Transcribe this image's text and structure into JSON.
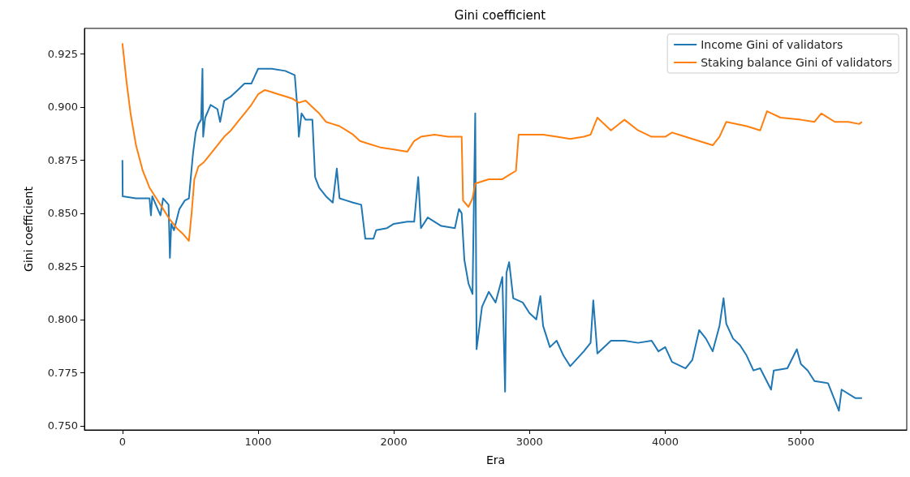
{
  "chart_data": {
    "type": "line",
    "title": "Gini coefficient",
    "xlabel": "Era",
    "ylabel": "Gini coefficient",
    "xlim": [
      -280,
      5780
    ],
    "ylim": [
      0.748,
      0.937
    ],
    "xticks": [
      0,
      1000,
      2000,
      3000,
      4000,
      5000
    ],
    "yticks": [
      {
        "value": 0.75,
        "label": "0.750"
      },
      {
        "value": 0.775,
        "label": "0.775"
      },
      {
        "value": 0.8,
        "label": "0.800"
      },
      {
        "value": 0.825,
        "label": "0.825"
      },
      {
        "value": 0.85,
        "label": "0.850"
      },
      {
        "value": 0.875,
        "label": "0.875"
      },
      {
        "value": 0.9,
        "label": "0.900"
      },
      {
        "value": 0.925,
        "label": "0.925"
      }
    ],
    "grid": false,
    "legend": "top right",
    "marker": "none",
    "line_style": "solid",
    "series": [
      {
        "name": "Income Gini of validators",
        "color": "#1f77b4",
        "x": [
          0,
          2,
          100,
          200,
          210,
          220,
          280,
          300,
          340,
          350,
          360,
          380,
          420,
          460,
          490,
          520,
          540,
          560,
          580,
          590,
          595,
          610,
          650,
          700,
          720,
          750,
          800,
          850,
          900,
          950,
          1000,
          1100,
          1200,
          1270,
          1290,
          1300,
          1320,
          1350,
          1400,
          1420,
          1450,
          1500,
          1550,
          1580,
          1600,
          1650,
          1700,
          1760,
          1790,
          1850,
          1870,
          1950,
          2000,
          2100,
          2150,
          2180,
          2200,
          2250,
          2350,
          2450,
          2480,
          2500,
          2520,
          2550,
          2580,
          2600,
          2610,
          2650,
          2700,
          2750,
          2800,
          2820,
          2830,
          2850,
          2880,
          2950,
          3000,
          3050,
          3080,
          3100,
          3150,
          3200,
          3250,
          3300,
          3400,
          3450,
          3470,
          3500,
          3600,
          3700,
          3800,
          3900,
          3950,
          4000,
          4050,
          4150,
          4200,
          4250,
          4300,
          4350,
          4400,
          4430,
          4450,
          4500,
          4550,
          4600,
          4650,
          4700,
          4780,
          4800,
          4900,
          4970,
          5000,
          5050,
          5100,
          5200,
          5280,
          5300,
          5400,
          5450
        ],
        "values": [
          0.875,
          0.858,
          0.857,
          0.857,
          0.849,
          0.858,
          0.849,
          0.857,
          0.854,
          0.829,
          0.845,
          0.842,
          0.852,
          0.856,
          0.857,
          0.878,
          0.888,
          0.892,
          0.894,
          0.918,
          0.886,
          0.895,
          0.901,
          0.899,
          0.893,
          0.903,
          0.905,
          0.908,
          0.911,
          0.911,
          0.918,
          0.918,
          0.917,
          0.915,
          0.899,
          0.886,
          0.897,
          0.894,
          0.894,
          0.867,
          0.862,
          0.858,
          0.855,
          0.871,
          0.857,
          0.856,
          0.855,
          0.854,
          0.838,
          0.838,
          0.842,
          0.843,
          0.845,
          0.846,
          0.846,
          0.867,
          0.843,
          0.848,
          0.844,
          0.843,
          0.852,
          0.85,
          0.828,
          0.817,
          0.812,
          0.897,
          0.786,
          0.806,
          0.813,
          0.808,
          0.82,
          0.766,
          0.822,
          0.827,
          0.81,
          0.808,
          0.803,
          0.8,
          0.811,
          0.797,
          0.787,
          0.79,
          0.783,
          0.778,
          0.785,
          0.789,
          0.809,
          0.784,
          0.79,
          0.79,
          0.789,
          0.79,
          0.785,
          0.787,
          0.78,
          0.777,
          0.781,
          0.795,
          0.791,
          0.785,
          0.797,
          0.81,
          0.798,
          0.791,
          0.788,
          0.783,
          0.776,
          0.777,
          0.767,
          0.776,
          0.777,
          0.786,
          0.779,
          0.776,
          0.771,
          0.77,
          0.757,
          0.767,
          0.763,
          0.763
        ]
      },
      {
        "name": "Staking balance Gini of validators",
        "color": "#ff7f0e",
        "x": [
          0,
          30,
          60,
          100,
          150,
          200,
          250,
          300,
          350,
          400,
          450,
          490,
          510,
          530,
          560,
          600,
          650,
          700,
          750,
          800,
          850,
          900,
          950,
          1000,
          1050,
          1100,
          1150,
          1200,
          1250,
          1300,
          1350,
          1400,
          1450,
          1500,
          1550,
          1600,
          1650,
          1700,
          1750,
          1800,
          1900,
          2000,
          2100,
          2150,
          2200,
          2300,
          2400,
          2500,
          2510,
          2550,
          2580,
          2600,
          2700,
          2800,
          2850,
          2900,
          2920,
          3000,
          3100,
          3200,
          3300,
          3400,
          3450,
          3500,
          3600,
          3700,
          3800,
          3900,
          4000,
          4050,
          4100,
          4200,
          4350,
          4400,
          4450,
          4600,
          4700,
          4750,
          4850,
          5000,
          5100,
          5150,
          5250,
          5350,
          5430,
          5450
        ],
        "values": [
          0.93,
          0.912,
          0.897,
          0.882,
          0.87,
          0.862,
          0.857,
          0.852,
          0.847,
          0.843,
          0.84,
          0.837,
          0.85,
          0.866,
          0.872,
          0.874,
          0.878,
          0.882,
          0.886,
          0.889,
          0.893,
          0.897,
          0.901,
          0.906,
          0.908,
          0.907,
          0.906,
          0.905,
          0.904,
          0.902,
          0.903,
          0.9,
          0.897,
          0.893,
          0.892,
          0.891,
          0.889,
          0.887,
          0.884,
          0.883,
          0.881,
          0.88,
          0.879,
          0.884,
          0.886,
          0.887,
          0.886,
          0.886,
          0.856,
          0.853,
          0.857,
          0.864,
          0.866,
          0.866,
          0.868,
          0.87,
          0.887,
          0.887,
          0.887,
          0.886,
          0.885,
          0.886,
          0.887,
          0.895,
          0.889,
          0.894,
          0.889,
          0.886,
          0.886,
          0.888,
          0.887,
          0.885,
          0.882,
          0.886,
          0.893,
          0.891,
          0.889,
          0.898,
          0.895,
          0.894,
          0.893,
          0.897,
          0.893,
          0.893,
          0.892,
          0.893
        ]
      }
    ]
  }
}
